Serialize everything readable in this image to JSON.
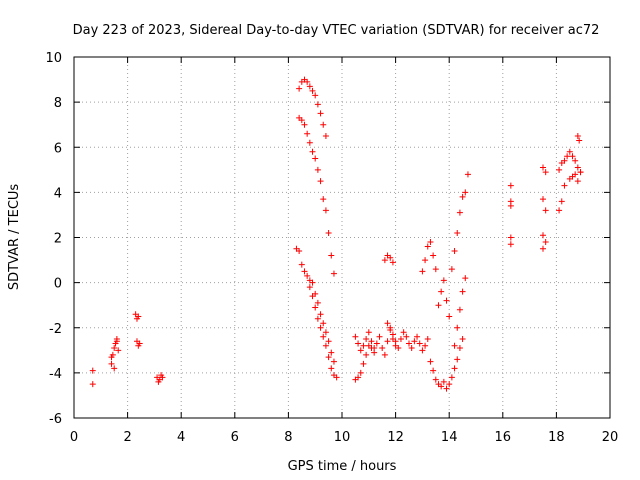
{
  "chart_data": {
    "type": "scatter",
    "title": "Day 223 of 2023, Sidereal Day-to-day VTEC variation (SDTVAR) for receiver ac72",
    "xlabel": "GPS time / hours",
    "ylabel": "SDTVAR / TECUs",
    "xlim": [
      0,
      20
    ],
    "ylim": [
      -6,
      10
    ],
    "xticks": [
      "0",
      "2",
      "4",
      "6",
      "8",
      "10",
      "12",
      "14",
      "16",
      "18",
      "20"
    ],
    "yticks": [
      "-6",
      "-4",
      "-2",
      "0",
      "2",
      "4",
      "6",
      "8",
      "10"
    ],
    "grid": true,
    "marker": "plus",
    "color": "#ff0000",
    "series": [
      {
        "name": "SDTVAR",
        "x": [
          0.7,
          0.7,
          1.4,
          1.45,
          1.5,
          1.55,
          1.6,
          1.65,
          1.4,
          1.5,
          1.6,
          2.3,
          2.35,
          2.4,
          2.35,
          2.4,
          2.45,
          3.1,
          3.2,
          3.3,
          3.15,
          3.25,
          8.4,
          8.5,
          8.6,
          8.7,
          8.8,
          8.9,
          9.0,
          9.1,
          9.2,
          9.3,
          9.4,
          8.4,
          8.5,
          8.6,
          8.7,
          8.8,
          8.9,
          9.0,
          9.1,
          9.2,
          9.3,
          9.4,
          9.5,
          9.6,
          9.7,
          8.3,
          8.4,
          8.5,
          8.6,
          8.7,
          8.8,
          8.9,
          9.0,
          9.1,
          9.2,
          9.3,
          9.4,
          9.5,
          9.6,
          9.7,
          8.8,
          8.9,
          9.0,
          9.1,
          9.2,
          9.3,
          9.4,
          9.5,
          9.6,
          9.7,
          9.8,
          10.5,
          10.6,
          10.7,
          10.8,
          10.9,
          11.0,
          11.1,
          11.2,
          10.5,
          10.6,
          10.7,
          10.8,
          10.9,
          11.0,
          11.1,
          11.2,
          11.3,
          11.4,
          11.5,
          11.6,
          11.7,
          11.8,
          11.9,
          12.0,
          11.6,
          11.7,
          11.8,
          11.9,
          11.7,
          11.8,
          11.9,
          12.0,
          12.1,
          12.2,
          12.3,
          12.4,
          12.5,
          12.6,
          12.7,
          12.8,
          12.9,
          13.0,
          13.1,
          13.2,
          13.0,
          13.1,
          13.2,
          13.3,
          13.4,
          13.5,
          13.3,
          13.4,
          13.5,
          13.6,
          13.7,
          13.8,
          13.9,
          14.0,
          14.1,
          14.2,
          14.3,
          14.4,
          14.5,
          13.6,
          13.7,
          13.8,
          13.9,
          14.0,
          14.1,
          14.2,
          14.3,
          14.4,
          14.5,
          14.6,
          14.7,
          14.2,
          14.3,
          14.4,
          14.5,
          14.6,
          16.3,
          16.3,
          16.3,
          16.3,
          16.3,
          17.5,
          17.6,
          17.5,
          17.6,
          17.5,
          17.6,
          17.5,
          18.1,
          18.2,
          18.3,
          18.1,
          18.2,
          18.3,
          18.4,
          18.5,
          18.6,
          18.7,
          18.8,
          18.9,
          18.5,
          18.6,
          18.7,
          18.8,
          18.9,
          18.8,
          18.85
        ],
        "y": [
          -3.9,
          -4.5,
          -3.6,
          -3.2,
          -2.9,
          -2.7,
          -2.5,
          -3.0,
          -3.3,
          -3.8,
          -2.6,
          -1.4,
          -1.6,
          -1.5,
          -2.6,
          -2.8,
          -2.7,
          -4.2,
          -4.3,
          -4.2,
          -4.4,
          -4.1,
          8.6,
          8.9,
          9.0,
          8.9,
          8.7,
          8.5,
          8.3,
          7.9,
          7.5,
          7.0,
          6.5,
          7.3,
          7.2,
          7.0,
          6.6,
          6.2,
          5.8,
          5.5,
          5.0,
          4.5,
          3.7,
          3.2,
          2.2,
          1.2,
          0.4,
          1.5,
          1.4,
          0.8,
          0.5,
          0.3,
          0.1,
          0.0,
          -0.5,
          -0.9,
          -1.4,
          -1.8,
          -2.2,
          -2.6,
          -3.1,
          -3.5,
          -0.2,
          -0.6,
          -1.1,
          -1.6,
          -2.0,
          -2.4,
          -2.8,
          -3.3,
          -3.8,
          -4.1,
          -4.2,
          -4.3,
          -4.2,
          -4.0,
          -3.6,
          -3.2,
          -2.8,
          -2.6,
          -2.9,
          -2.4,
          -2.7,
          -3.0,
          -2.8,
          -2.5,
          -2.2,
          -2.9,
          -3.1,
          -2.7,
          -2.4,
          -2.9,
          -3.2,
          -2.6,
          -2.1,
          -2.5,
          -2.8,
          1.0,
          1.2,
          1.1,
          0.9,
          -1.8,
          -2.0,
          -2.3,
          -2.6,
          -2.9,
          -2.5,
          -2.2,
          -2.4,
          -2.7,
          -2.9,
          -2.6,
          -2.4,
          -2.7,
          -3.0,
          -2.8,
          -2.5,
          0.5,
          1.0,
          1.6,
          1.8,
          1.2,
          0.6,
          -3.5,
          -3.9,
          -4.3,
          -4.5,
          -4.6,
          -4.4,
          -4.7,
          -4.5,
          -4.2,
          -3.8,
          -3.4,
          -2.9,
          -2.5,
          -1.0,
          -0.4,
          0.1,
          -0.8,
          -1.5,
          0.6,
          1.4,
          2.2,
          3.1,
          3.8,
          4.0,
          4.8,
          -2.8,
          -2.0,
          -1.2,
          -0.4,
          0.2,
          4.3,
          3.6,
          3.4,
          2.0,
          1.7,
          5.1,
          4.9,
          3.7,
          3.2,
          2.1,
          1.8,
          1.5,
          3.2,
          3.6,
          4.3,
          5.0,
          5.3,
          5.4,
          5.6,
          5.8,
          5.6,
          5.4,
          5.1,
          4.9,
          4.6,
          4.7,
          4.8,
          4.5,
          4.9,
          6.5,
          6.3
        ]
      }
    ]
  }
}
